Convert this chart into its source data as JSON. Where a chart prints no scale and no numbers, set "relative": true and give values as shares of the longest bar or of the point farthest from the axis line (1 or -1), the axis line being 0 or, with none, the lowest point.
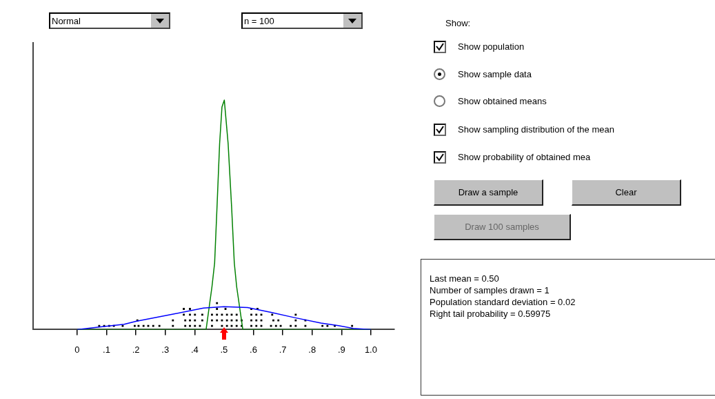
{
  "chart_data": {
    "type": "line",
    "relative": true,
    "legend": false,
    "grid": false,
    "xlim": [
      -0.15,
      1.08
    ],
    "xticks": [
      0,
      {
        "value": 0.1,
        "label": ".1"
      },
      {
        "value": 0.2,
        "label": ".2"
      },
      {
        "value": 0.3,
        "label": ".3"
      },
      {
        "value": 0.4,
        "label": ".4"
      },
      {
        "value": 0.5,
        "label": ".5"
      },
      {
        "value": 0.6,
        "label": ".6"
      },
      {
        "value": 0.7,
        "label": ".7"
      },
      {
        "value": 0.8,
        "label": ".8"
      },
      {
        "value": 0.9,
        "label": ".9"
      },
      {
        "value": 1,
        "label": "1.0"
      }
    ],
    "series": [
      {
        "type": "line",
        "color": "#0000ff",
        "marker": "none",
        "x": [
          0,
          0.07,
          0.16,
          0.2,
          0.33,
          0.43,
          0.5,
          0.58,
          0.66,
          0.74,
          0.83,
          0.89,
          0.94,
          1
        ],
        "values": [
          0,
          0.01,
          0.023,
          0.036,
          0.068,
          0.094,
          0.1,
          0.096,
          0.075,
          0.052,
          0.028,
          0.017,
          0.005,
          0
        ]
      },
      {
        "type": "line",
        "color": "#008000",
        "marker": "none",
        "x": [
          0,
          0.439,
          0.459,
          0.468,
          0.476,
          0.485,
          0.493,
          0.501,
          0.514,
          0.526,
          0.535,
          0.543,
          0.564,
          1
        ],
        "values": [
          0,
          0,
          0.187,
          0.29,
          0.53,
          0.81,
          0.97,
          1,
          0.81,
          0.53,
          0.29,
          0.187,
          0,
          0
        ]
      },
      {
        "type": "scatter",
        "color": "#000000",
        "marker": "square",
        "x": [
          0.075,
          0.092,
          0.109,
          0.125,
          0.155,
          0.196,
          0.209,
          0.226,
          0.242,
          0.259,
          0.28,
          0.326,
          0.368,
          0.384,
          0.401,
          0.418,
          0.459,
          0.493,
          0.51,
          0.526,
          0.543,
          0.56,
          0.593,
          0.61,
          0.627,
          0.66,
          0.677,
          0.693,
          0.727,
          0.744,
          0.777,
          0.835,
          0.852,
          0.877,
          0.936,
          0.205,
          0.326,
          0.368,
          0.384,
          0.401,
          0.426,
          0.459,
          0.476,
          0.493,
          0.51,
          0.526,
          0.543,
          0.56,
          0.593,
          0.61,
          0.627,
          0.668,
          0.685,
          0.744,
          0.777,
          0.363,
          0.384,
          0.401,
          0.426,
          0.459,
          0.476,
          0.493,
          0.51,
          0.526,
          0.543,
          0.593,
          0.61,
          0.627,
          0.664,
          0.744,
          0.363,
          0.384,
          0.476,
          0.505,
          0.593,
          0.614,
          0.476
        ],
        "values": [
          0.016,
          0.016,
          0.016,
          0.016,
          0.016,
          0.016,
          0.016,
          0.016,
          0.016,
          0.016,
          0.016,
          0.016,
          0.016,
          0.016,
          0.016,
          0.016,
          0.016,
          0.016,
          0.016,
          0.016,
          0.016,
          0.016,
          0.016,
          0.016,
          0.016,
          0.016,
          0.016,
          0.016,
          0.016,
          0.016,
          0.016,
          0.016,
          0.016,
          0.016,
          0.016,
          0.04,
          0.04,
          0.04,
          0.04,
          0.04,
          0.04,
          0.04,
          0.04,
          0.04,
          0.04,
          0.04,
          0.04,
          0.04,
          0.04,
          0.04,
          0.04,
          0.04,
          0.04,
          0.04,
          0.04,
          0.065,
          0.065,
          0.065,
          0.065,
          0.065,
          0.065,
          0.065,
          0.065,
          0.065,
          0.065,
          0.065,
          0.065,
          0.065,
          0.065,
          0.065,
          0.09,
          0.09,
          0.09,
          0.09,
          0.09,
          0.09,
          0.115
        ]
      }
    ],
    "annotations": [
      "Normal",
      "n = 100",
      "Show:",
      "Show population",
      "Show sample data",
      "Show obtained means",
      "Show sampling distribution of the mean",
      "Show probability of obtained mea",
      "Draw a sample",
      "Clear",
      "Draw 100 samples",
      "Last mean = 0.50",
      "Number of samples drawn = 1",
      "Population standard deviation = 0.02",
      "Right tail probability = 0.59975"
    ]
  }
}
